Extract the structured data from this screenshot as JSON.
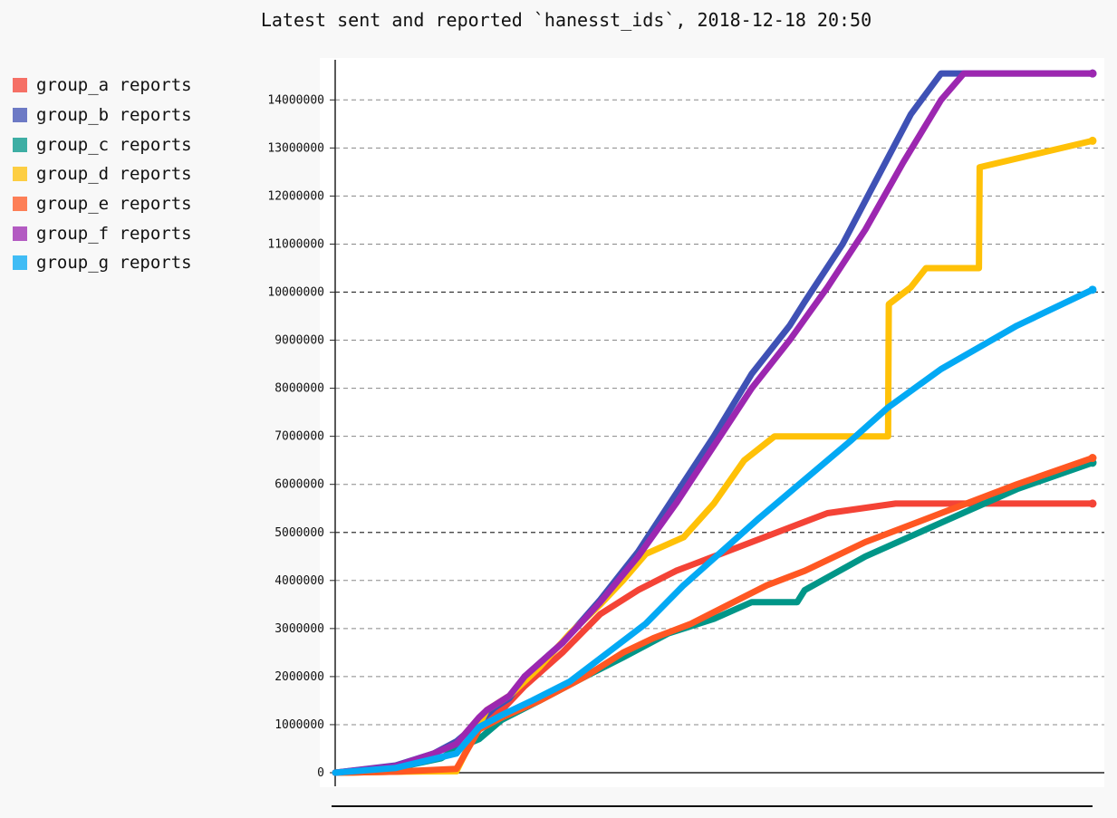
{
  "chart_data": {
    "type": "line",
    "title": "Latest sent and reported `hanesst_ids`, 2018-12-18 20:50",
    "xlabel": "",
    "ylabel": "",
    "ylim": [
      0,
      14800000
    ],
    "yticks": [
      0,
      1000000,
      2000000,
      3000000,
      4000000,
      5000000,
      6000000,
      7000000,
      8000000,
      9000000,
      10000000,
      11000000,
      12000000,
      13000000,
      14000000
    ],
    "ytick_labels": [
      "0",
      "1000000",
      "2000000",
      "3000000",
      "4000000",
      "5000000",
      "6000000",
      "7000000",
      "8000000",
      "9000000",
      "10000000",
      "11000000",
      "12000000",
      "13000000",
      "14000000"
    ],
    "xlim": [
      0,
      100
    ],
    "grid": true,
    "legend_position": "left",
    "series": [
      {
        "name": "group_a reports",
        "color": "#f44336",
        "points": [
          [
            0,
            0
          ],
          [
            8,
            20000
          ],
          [
            16,
            60000
          ],
          [
            16.1,
            90000
          ],
          [
            16.2,
            100000
          ],
          [
            19,
            1000000
          ],
          [
            22,
            1300000
          ],
          [
            25,
            1800000
          ],
          [
            30,
            2500000
          ],
          [
            35,
            3300000
          ],
          [
            40,
            3800000
          ],
          [
            45,
            4200000
          ],
          [
            50,
            4500000
          ],
          [
            55,
            4800000
          ],
          [
            60,
            5100000
          ],
          [
            65,
            5400000
          ],
          [
            74,
            5600000
          ],
          [
            100,
            5600000
          ]
        ]
      },
      {
        "name": "group_b reports",
        "color": "#3f51b5",
        "points": [
          [
            0,
            0
          ],
          [
            8,
            150000
          ],
          [
            13,
            400000
          ],
          [
            16,
            650000
          ],
          [
            19,
            1050000
          ],
          [
            20,
            1200000
          ],
          [
            21,
            1350000
          ],
          [
            23,
            1550000
          ],
          [
            25,
            2000000
          ],
          [
            30,
            2700000
          ],
          [
            35,
            3600000
          ],
          [
            40,
            4600000
          ],
          [
            45,
            5800000
          ],
          [
            50,
            7000000
          ],
          [
            55,
            8300000
          ],
          [
            60,
            9300000
          ],
          [
            62,
            9800000
          ],
          [
            67,
            11000000
          ],
          [
            72,
            12500000
          ],
          [
            76,
            13700000
          ],
          [
            80,
            14550000
          ],
          [
            100,
            14550000
          ]
        ]
      },
      {
        "name": "group_c reports",
        "color": "#009688",
        "points": [
          [
            0,
            0
          ],
          [
            8,
            100000
          ],
          [
            14,
            300000
          ],
          [
            16,
            500000
          ],
          [
            19,
            700000
          ],
          [
            22,
            1100000
          ],
          [
            27,
            1500000
          ],
          [
            33,
            2000000
          ],
          [
            38,
            2400000
          ],
          [
            44,
            2900000
          ],
          [
            50,
            3200000
          ],
          [
            55,
            3550000
          ],
          [
            61,
            3550000
          ],
          [
            62,
            3800000
          ],
          [
            70,
            4500000
          ],
          [
            80,
            5200000
          ],
          [
            90,
            5900000
          ],
          [
            100,
            6450000
          ]
        ]
      },
      {
        "name": "group_d reports",
        "color": "#ffc107",
        "points": [
          [
            0,
            0
          ],
          [
            8,
            20000
          ],
          [
            16,
            30000
          ],
          [
            20,
            1300000
          ],
          [
            23,
            1600000
          ],
          [
            27,
            2200000
          ],
          [
            31,
            2900000
          ],
          [
            35,
            3500000
          ],
          [
            38,
            4000000
          ],
          [
            41,
            4550000
          ],
          [
            46,
            4900000
          ],
          [
            50,
            5600000
          ],
          [
            54,
            6500000
          ],
          [
            58,
            7000000
          ],
          [
            73,
            7000000
          ],
          [
            73.1,
            9750000
          ],
          [
            76,
            10100000
          ],
          [
            78,
            10500000
          ],
          [
            85,
            10500000
          ],
          [
            85.1,
            12600000
          ],
          [
            100,
            13150000
          ]
        ]
      },
      {
        "name": "group_e reports",
        "color": "#ff5722",
        "points": [
          [
            0,
            0
          ],
          [
            8,
            20000
          ],
          [
            16,
            80000
          ],
          [
            19,
            900000
          ],
          [
            22,
            1150000
          ],
          [
            27,
            1500000
          ],
          [
            33,
            2000000
          ],
          [
            38,
            2500000
          ],
          [
            42,
            2800000
          ],
          [
            47,
            3100000
          ],
          [
            52,
            3500000
          ],
          [
            57,
            3900000
          ],
          [
            62,
            4200000
          ],
          [
            70,
            4800000
          ],
          [
            80,
            5400000
          ],
          [
            90,
            6000000
          ],
          [
            100,
            6550000
          ]
        ]
      },
      {
        "name": "group_f reports",
        "color": "#9c27b0",
        "points": [
          [
            0,
            0
          ],
          [
            8,
            140000
          ],
          [
            13,
            400000
          ],
          [
            16,
            600000
          ],
          [
            19,
            1150000
          ],
          [
            20,
            1300000
          ],
          [
            21,
            1400000
          ],
          [
            23,
            1600000
          ],
          [
            25,
            2000000
          ],
          [
            30,
            2700000
          ],
          [
            35,
            3550000
          ],
          [
            40,
            4500000
          ],
          [
            45,
            5600000
          ],
          [
            50,
            6800000
          ],
          [
            55,
            8000000
          ],
          [
            60,
            9000000
          ],
          [
            65,
            10100000
          ],
          [
            70,
            11300000
          ],
          [
            75,
            12700000
          ],
          [
            80,
            14000000
          ],
          [
            83,
            14550000
          ],
          [
            100,
            14550000
          ]
        ]
      },
      {
        "name": "group_g reports",
        "color": "#03a9f4",
        "points": [
          [
            0,
            0
          ],
          [
            8,
            100000
          ],
          [
            16,
            400000
          ],
          [
            19,
            950000
          ],
          [
            22,
            1200000
          ],
          [
            26,
            1500000
          ],
          [
            31,
            1900000
          ],
          [
            36,
            2500000
          ],
          [
            41,
            3100000
          ],
          [
            46,
            3900000
          ],
          [
            51,
            4600000
          ],
          [
            56,
            5300000
          ],
          [
            62,
            6100000
          ],
          [
            68,
            6900000
          ],
          [
            73,
            7600000
          ],
          [
            80,
            8400000
          ],
          [
            90,
            9300000
          ],
          [
            100,
            10050000
          ]
        ]
      }
    ]
  }
}
